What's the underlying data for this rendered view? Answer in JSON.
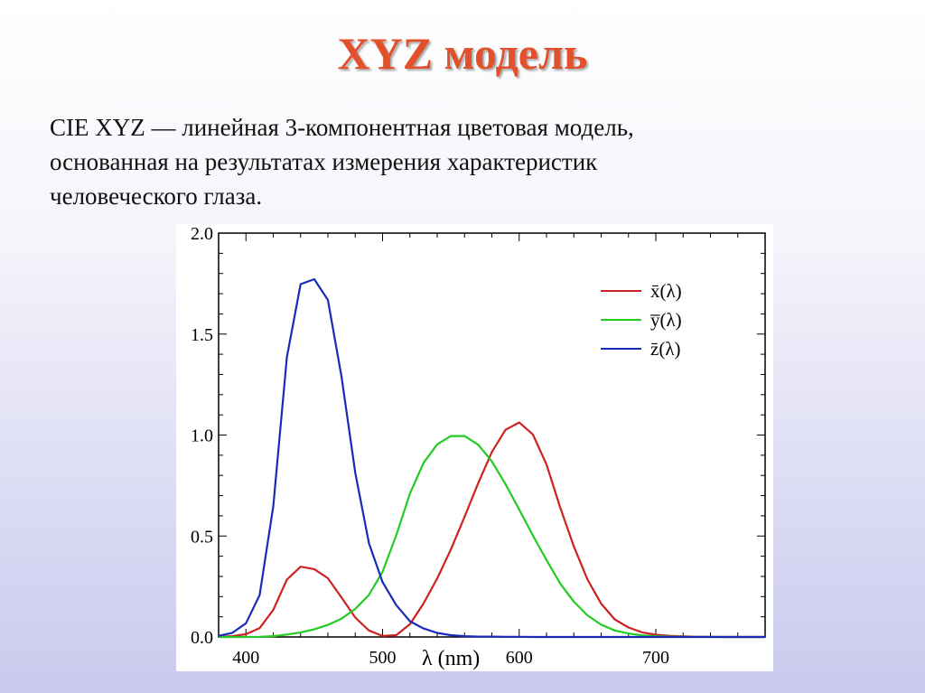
{
  "slide": {
    "title": "XYZ модель",
    "description_lines": [
      "CIE XYZ — линейная 3-компонентная цветовая модель,",
      "основанная на результатах измерения характеристик",
      "человеческого глаза."
    ]
  },
  "chart_data": {
    "type": "line",
    "title": "",
    "xlabel": "λ (nm)",
    "ylabel": "",
    "xlim": [
      380,
      780
    ],
    "ylim": [
      0,
      2.0
    ],
    "xticks": [
      400,
      500,
      600,
      700
    ],
    "xtick_labels": [
      "400",
      "500",
      "600",
      "700"
    ],
    "yticks": [
      0,
      0.5,
      1.0,
      1.5,
      2.0
    ],
    "ytick_labels": [
      "0.0",
      "0.5",
      "1.0",
      "1.5",
      "2.0"
    ],
    "grid": false,
    "legend_position": "top-right",
    "x": [
      380,
      390,
      400,
      410,
      420,
      430,
      440,
      450,
      460,
      470,
      480,
      490,
      500,
      510,
      520,
      530,
      540,
      550,
      560,
      570,
      580,
      590,
      600,
      610,
      620,
      630,
      640,
      650,
      660,
      670,
      680,
      690,
      700,
      710,
      720,
      730,
      740,
      750,
      760,
      770,
      780
    ],
    "series": [
      {
        "name": "x̄(λ)",
        "color": "#cc2222",
        "values": [
          0.001,
          0.004,
          0.014,
          0.044,
          0.134,
          0.284,
          0.348,
          0.336,
          0.291,
          0.195,
          0.096,
          0.032,
          0.005,
          0.009,
          0.063,
          0.166,
          0.29,
          0.433,
          0.595,
          0.762,
          0.916,
          1.026,
          1.062,
          1.003,
          0.854,
          0.642,
          0.448,
          0.284,
          0.165,
          0.087,
          0.047,
          0.023,
          0.011,
          0.006,
          0.003,
          0.001,
          0.001,
          0.0,
          0.0,
          0.0,
          0.0
        ]
      },
      {
        "name": "y̅(λ)",
        "color": "#22cc22",
        "values": [
          0.0,
          0.0,
          0.0,
          0.001,
          0.004,
          0.012,
          0.023,
          0.038,
          0.06,
          0.091,
          0.139,
          0.208,
          0.323,
          0.503,
          0.71,
          0.862,
          0.954,
          0.995,
          0.995,
          0.952,
          0.87,
          0.757,
          0.631,
          0.503,
          0.381,
          0.265,
          0.175,
          0.107,
          0.061,
          0.032,
          0.017,
          0.008,
          0.004,
          0.002,
          0.001,
          0.001,
          0.0,
          0.0,
          0.0,
          0.0,
          0.0
        ]
      },
      {
        "name": "z̄(λ)",
        "color": "#1a2ab8",
        "values": [
          0.006,
          0.02,
          0.068,
          0.207,
          0.646,
          1.386,
          1.747,
          1.772,
          1.669,
          1.288,
          0.813,
          0.465,
          0.272,
          0.158,
          0.078,
          0.042,
          0.02,
          0.009,
          0.004,
          0.002,
          0.002,
          0.001,
          0.001,
          0.0,
          0.0,
          0.0,
          0.0,
          0.0,
          0.0,
          0.0,
          0.0,
          0.0,
          0.0,
          0.0,
          0.0,
          0.0,
          0.0,
          0.0,
          0.0,
          0.0,
          0.0
        ]
      }
    ]
  }
}
